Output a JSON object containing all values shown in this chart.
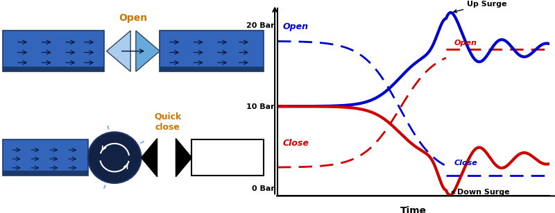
{
  "fig_width": 8.0,
  "fig_height": 3.07,
  "dpi": 100,
  "blue_color": "#1155AA",
  "blue_dark": "#0033AA",
  "red_color": "#CC0000",
  "chart_blue": "#0000CC",
  "chart_red": "#CC0000",
  "pipe_blue": "#3366BB",
  "pipe_dark": "#1A3A6B",
  "ylabel_ticks": [
    "0 Bar",
    "10 Bar",
    "20 Bar"
  ],
  "ylabel_vals": [
    0,
    10,
    20
  ],
  "xlim": [
    0,
    10
  ],
  "ylim": [
    -1,
    22
  ],
  "surge_x": 6.2,
  "label_open_blue": "Open",
  "label_close_red": "Close",
  "label_open_red": "Open",
  "label_close_blue": "Close",
  "annotation_up_surge": "Up Surge",
  "annotation_down_surge": "Down Surge",
  "xlabel": "Time",
  "open_label": "Open",
  "quick_close_label": "Quick\nclose"
}
